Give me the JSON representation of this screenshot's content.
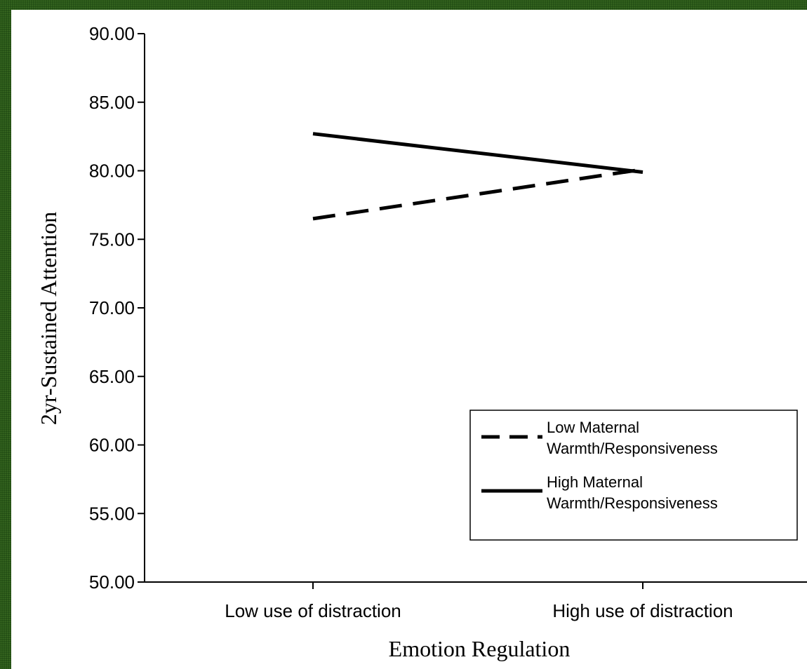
{
  "chart_data": {
    "type": "line",
    "title": "",
    "xlabel": "Emotion Regulation",
    "ylabel": "2yr-Sustained Attention",
    "categories": [
      "Low use of distraction",
      "High use of distraction"
    ],
    "ylim": [
      50,
      90
    ],
    "yticks": [
      "50.00",
      "55.00",
      "60.00",
      "65.00",
      "70.00",
      "75.00",
      "80.00",
      "85.00",
      "90.00"
    ],
    "grid": false,
    "legend_position": "bottom-right",
    "series": [
      {
        "name_lines": [
          "Low Maternal",
          "Warmth/Responsiveness"
        ],
        "values": [
          76.5,
          80.1
        ],
        "style": "dashed",
        "color": "#000000"
      },
      {
        "name_lines": [
          "High Maternal",
          "Warmth/Responsiveness"
        ],
        "values": [
          82.7,
          79.9
        ],
        "style": "solid",
        "color": "#000000"
      }
    ]
  }
}
